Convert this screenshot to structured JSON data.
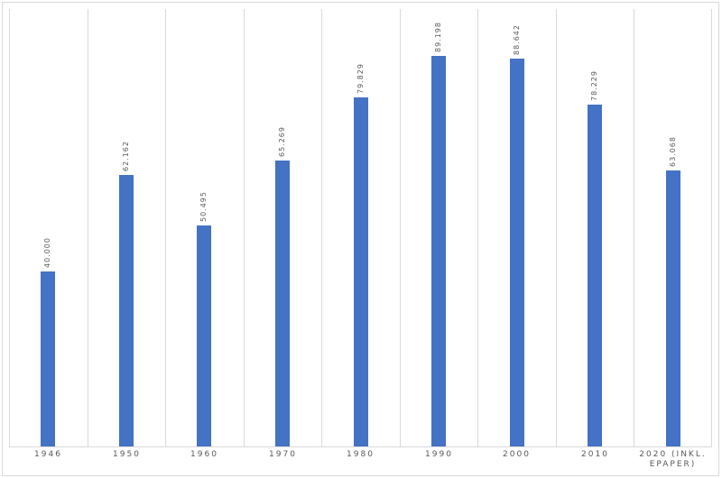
{
  "chart_data": {
    "type": "bar",
    "title": "",
    "xlabel": "",
    "ylabel": "",
    "legend": "none",
    "gridlines": "vertical-category-separators",
    "value_label_orientation": "rotated-bottom-to-top",
    "ylim": [
      0,
      100000
    ],
    "categories": [
      "1946",
      "1950",
      "1960",
      "1970",
      "1980",
      "1990",
      "2000",
      "2010",
      "2020 (INKL. EPAPER)"
    ],
    "values": [
      40000,
      62162,
      50495,
      65269,
      79829,
      89198,
      88642,
      78229,
      63068
    ],
    "value_labels": [
      "40.000",
      "62.162",
      "50.495",
      "65.269",
      "79.829",
      "89.198",
      "88.642",
      "78.229",
      "63.068"
    ],
    "colors": {
      "bar": "#4472C4",
      "label": "#595959",
      "gridline": "#D9D9D9",
      "border": "#D9D9D9",
      "background": "#FFFFFF"
    }
  }
}
